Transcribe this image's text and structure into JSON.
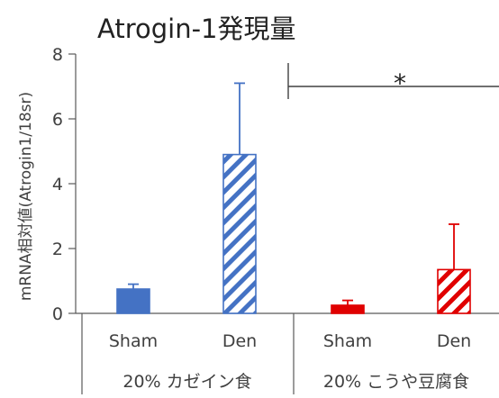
{
  "chart_data": {
    "type": "bar",
    "title": "Atrogin-1発現量",
    "ylabel": "mRNA相対値(Atrogin1/18sr)",
    "xlabel": "",
    "ylim": [
      0,
      8
    ],
    "yticks": [
      "0",
      "2",
      "4",
      "6",
      "8"
    ],
    "grid": false,
    "legend": "none",
    "categories": [
      "Sham",
      "Den",
      "Sham",
      "Den"
    ],
    "groups": [
      {
        "label": "20% カゼイン食",
        "members": [
          0,
          1
        ]
      },
      {
        "label": "20% こうや豆腐食",
        "members": [
          2,
          3
        ]
      }
    ],
    "values": [
      0.75,
      4.9,
      0.25,
      1.35
    ],
    "errors": [
      0.15,
      2.2,
      0.15,
      1.4
    ],
    "fills": [
      "solid",
      "hatch",
      "solid",
      "hatch"
    ],
    "colors": [
      "#4472C4",
      "#4472C4",
      "#E00000",
      "#E00000"
    ],
    "significance": {
      "marker": "*",
      "between": [
        1,
        3
      ]
    }
  }
}
